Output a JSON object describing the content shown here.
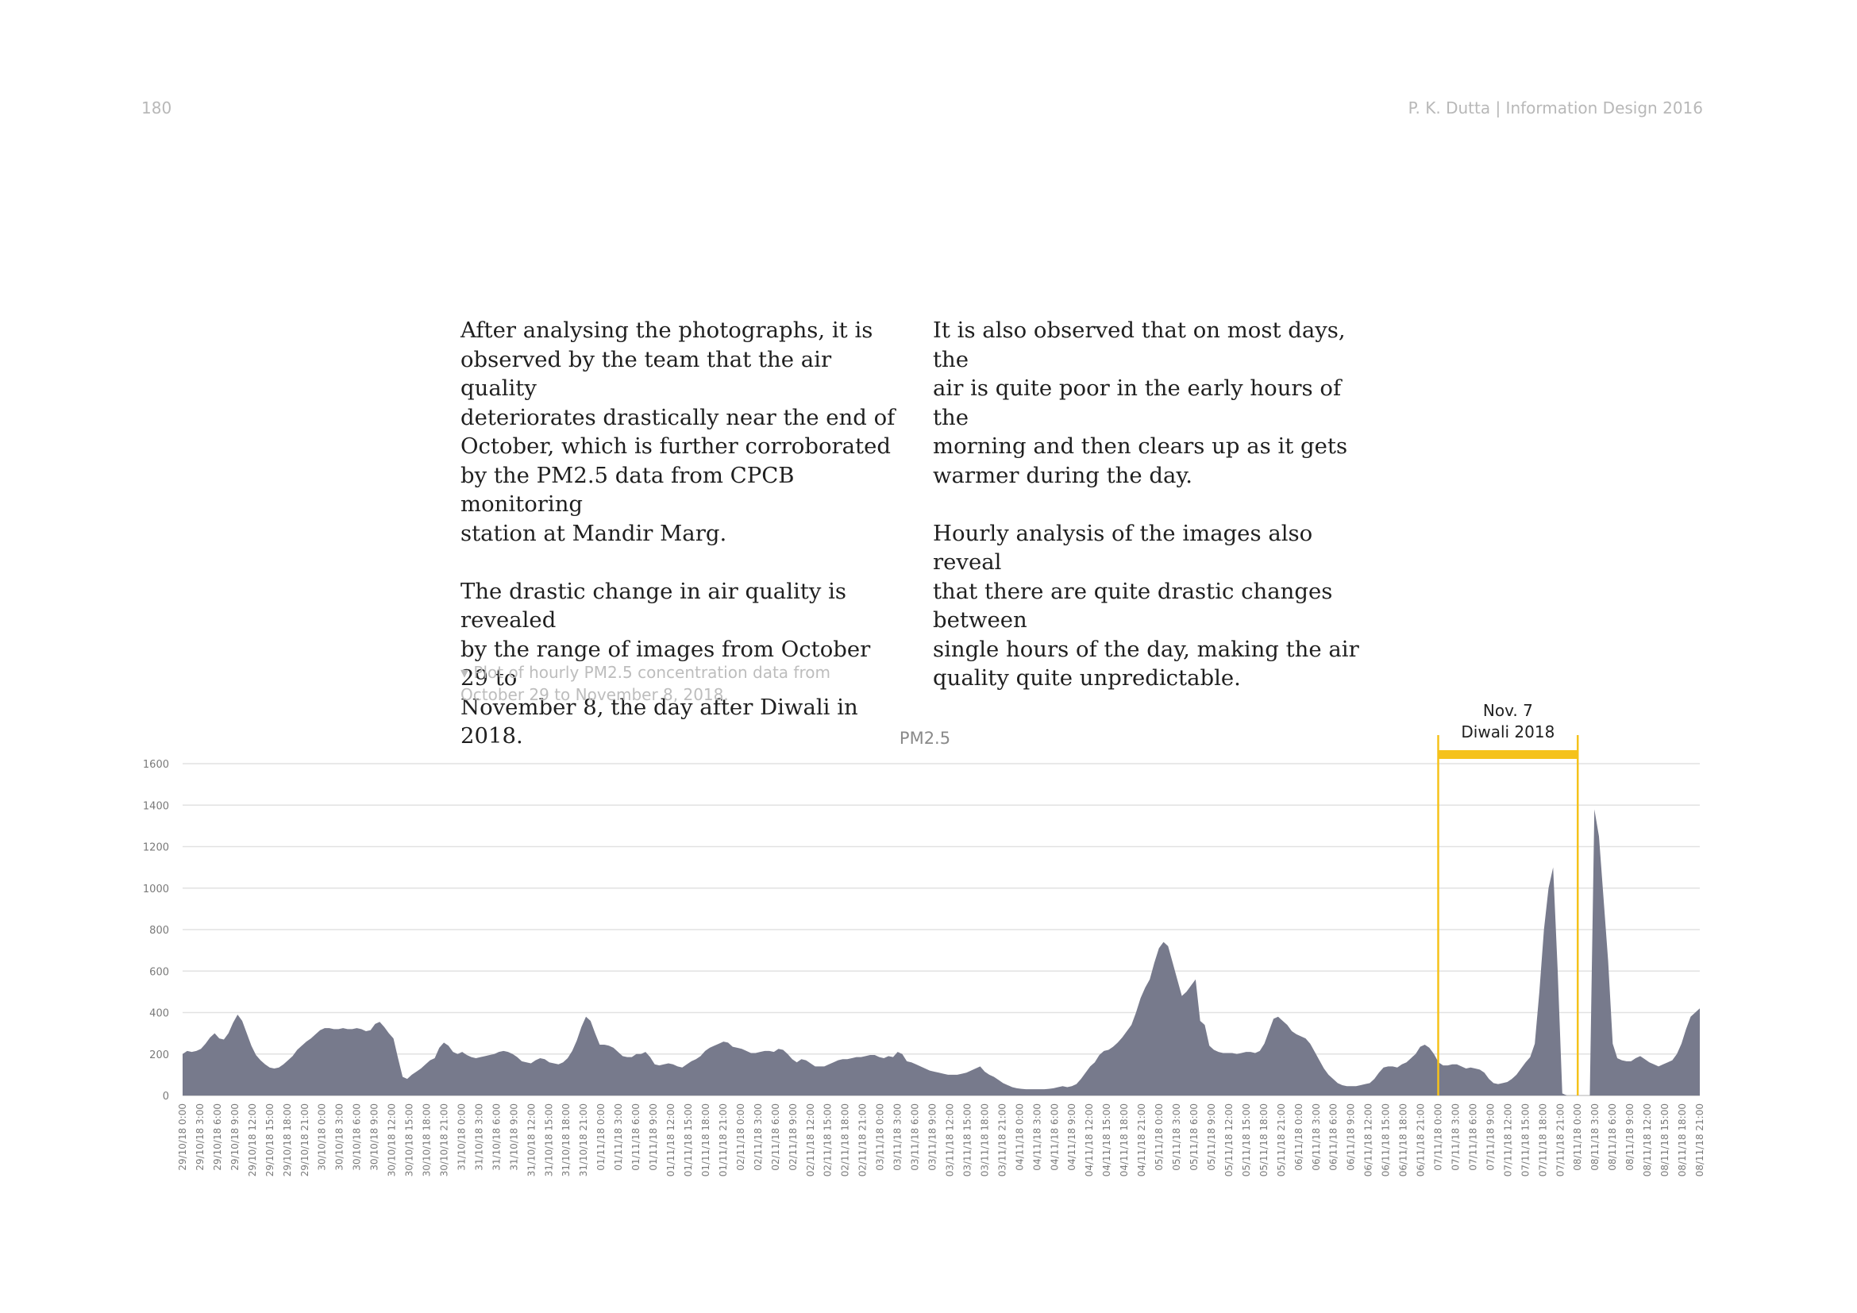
{
  "page": {
    "number": "180",
    "running_head": "P. K. Dutta | Information Design 2016"
  },
  "text": {
    "col1": "After analysing the photographs, it is\nobserved by the team that the air quality\ndeteriorates drastically near the end of\nOctober, which is further corroborated\nby the PM2.5 data from CPCB monitoring\nstation at Mandir Marg.\n\nThe drastic change in air quality is revealed\nby  the range of images from October 29 to\nNovember 8, the day after Diwali in 2018.",
    "col2": "It is also observed that on most days, the\nair is quite poor in the early hours of the\nmorning and then clears up as it gets\nwarmer during the day.\n\nHourly analysis of the images also reveal\nthat there are quite drastic changes between\nsingle hours of the day, making the air\nquality quite unpredictable.",
    "caption": "▾ Plot of hourly PM2.5 concentration data from\nOctober 29 to November 8, 2018."
  },
  "chart_data": {
    "type": "area",
    "title": "PM2.5",
    "xlabel": "",
    "ylabel": "",
    "ylim": [
      0,
      1600
    ],
    "yticks": [
      0,
      200,
      400,
      600,
      800,
      1000,
      1200,
      1400,
      1600
    ],
    "grid": true,
    "fill_color": "#777a8c",
    "highlight_color": "#f5c21b",
    "x_tick_labels": [
      "29/10/18 0:00",
      "29/10/18 3:00",
      "29/10/18 6:00",
      "29/10/18 9:00",
      "29/10/18 12:00",
      "29/10/18 15:00",
      "29/10/18 18:00",
      "29/10/18 21:00",
      "30/10/18 0:00",
      "30/10/18 3:00",
      "30/10/18 6:00",
      "30/10/18 9:00",
      "30/10/18 12:00",
      "30/10/18 15:00",
      "30/10/18 18:00",
      "30/10/18 21:00",
      "31/10/18 0:00",
      "31/10/18 3:00",
      "31/10/18 6:00",
      "31/10/18 9:00",
      "31/10/18 12:00",
      "31/10/18 15:00",
      "31/10/18 18:00",
      "31/10/18 21:00",
      "01/11/18 0:00",
      "01/11/18 3:00",
      "01/11/18 6:00",
      "01/11/18 9:00",
      "01/11/18 12:00",
      "01/11/18 15:00",
      "01/11/18 18:00",
      "01/11/18 21:00",
      "02/11/18 0:00",
      "02/11/18 3:00",
      "02/11/18 6:00",
      "02/11/18 9:00",
      "02/11/18 12:00",
      "02/11/18 15:00",
      "02/11/18 18:00",
      "02/11/18 21:00",
      "03/11/18 0:00",
      "03/11/18 3:00",
      "03/11/18 6:00",
      "03/11/18 9:00",
      "03/11/18 12:00",
      "03/11/18 15:00",
      "03/11/18 18:00",
      "03/11/18 21:00",
      "04/11/18 0:00",
      "04/11/18 3:00",
      "04/11/18 6:00",
      "04/11/18 9:00",
      "04/11/18 12:00",
      "04/11/18 15:00",
      "04/11/18 18:00",
      "04/11/18 21:00",
      "05/11/18 0:00",
      "05/11/18 3:00",
      "05/11/18 6:00",
      "05/11/18 9:00",
      "05/11/18 12:00",
      "05/11/18 15:00",
      "05/11/18 18:00",
      "05/11/18 21:00",
      "06/11/18 0:00",
      "06/11/18 3:00",
      "06/11/18 6:00",
      "06/11/18 9:00",
      "06/11/18 12:00",
      "06/11/18 15:00",
      "06/11/18 18:00",
      "06/11/18 21:00",
      "07/11/18 0:00",
      "07/11/18 3:00",
      "07/11/18 6:00",
      "07/11/18 9:00",
      "07/11/18 12:00",
      "07/11/18 15:00",
      "07/11/18 18:00",
      "07/11/18 21:00",
      "08/11/18 0:00",
      "08/11/18 3:00",
      "08/11/18 6:00",
      "08/11/18 9:00",
      "08/11/18 12:00",
      "08/11/18 15:00",
      "08/11/18 18:00",
      "08/11/18 21:00"
    ],
    "series": [
      {
        "values": [
          200,
          215,
          210,
          215,
          225,
          250,
          280,
          300,
          275,
          270,
          300,
          350,
          390,
          360,
          300,
          240,
          195,
          170,
          150,
          135,
          130,
          135,
          150,
          170,
          190,
          220,
          240,
          260,
          275,
          295,
          315,
          325,
          325,
          320,
          320,
          325,
          320,
          320,
          325,
          320,
          310,
          315,
          345,
          355,
          330,
          300,
          275,
          180,
          90,
          80,
          100,
          115,
          130,
          150,
          170,
          180,
          230,
          255,
          240,
          210,
          200,
          210,
          195,
          185,
          180,
          185,
          190,
          195,
          200,
          210,
          215,
          210,
          200,
          185,
          165,
          160,
          155,
          170,
          180,
          175,
          160,
          155,
          150,
          160,
          180,
          215,
          265,
          330,
          380,
          360,
          300,
          245,
          245,
          240,
          230,
          210,
          190,
          185,
          185,
          200,
          200,
          210,
          185,
          150,
          145,
          150,
          155,
          150,
          140,
          135,
          150,
          165,
          175,
          190,
          215,
          230,
          240,
          250,
          260,
          255,
          235,
          230,
          225,
          215,
          205,
          205,
          210,
          215,
          215,
          210,
          225,
          220,
          200,
          175,
          160,
          175,
          170,
          155,
          140,
          140,
          140,
          150,
          160,
          170,
          175,
          175,
          180,
          185,
          185,
          190,
          195,
          195,
          185,
          180,
          190,
          185,
          210,
          200,
          165,
          160,
          150,
          140,
          130,
          120,
          115,
          110,
          105,
          100,
          100,
          100,
          105,
          110,
          120,
          130,
          140,
          115,
          100,
          90,
          75,
          60,
          50,
          40,
          35,
          32,
          30,
          30,
          30,
          30,
          30,
          32,
          35,
          40,
          45,
          40,
          45,
          55,
          80,
          110,
          140,
          160,
          195,
          215,
          220,
          235,
          255,
          280,
          310,
          340,
          400,
          470,
          520,
          560,
          640,
          710,
          740,
          720,
          640,
          560,
          480,
          500,
          530,
          560,
          360,
          340,
          240,
          220,
          210,
          205,
          205,
          205,
          200,
          205,
          210,
          210,
          205,
          215,
          250,
          310,
          370,
          380,
          360,
          340,
          310,
          295,
          285,
          275,
          250,
          210,
          170,
          130,
          100,
          80,
          60,
          50,
          45,
          45,
          45,
          50,
          55,
          60,
          80,
          110,
          135,
          140,
          140,
          135,
          150,
          160,
          180,
          200,
          235,
          245,
          230,
          200,
          160,
          145,
          145,
          150,
          150,
          140,
          130,
          135,
          130,
          125,
          110,
          80,
          60,
          55,
          60,
          65,
          80,
          100,
          130,
          160,
          185,
          250,
          500,
          800,
          1000,
          1100,
          600,
          10,
          0,
          0,
          0,
          0,
          0,
          0,
          1380,
          1250,
          950,
          650,
          250,
          180,
          170,
          165,
          165,
          180,
          190,
          175,
          160,
          150,
          140,
          150,
          160,
          170,
          200,
          250,
          320,
          380,
          400,
          420
        ]
      }
    ],
    "annotation": {
      "label_line1": "Nov. 7",
      "label_line2": "Diwali 2018",
      "x_start": "07/11/18 0:00",
      "x_end": "08/11/18 0:00"
    }
  }
}
